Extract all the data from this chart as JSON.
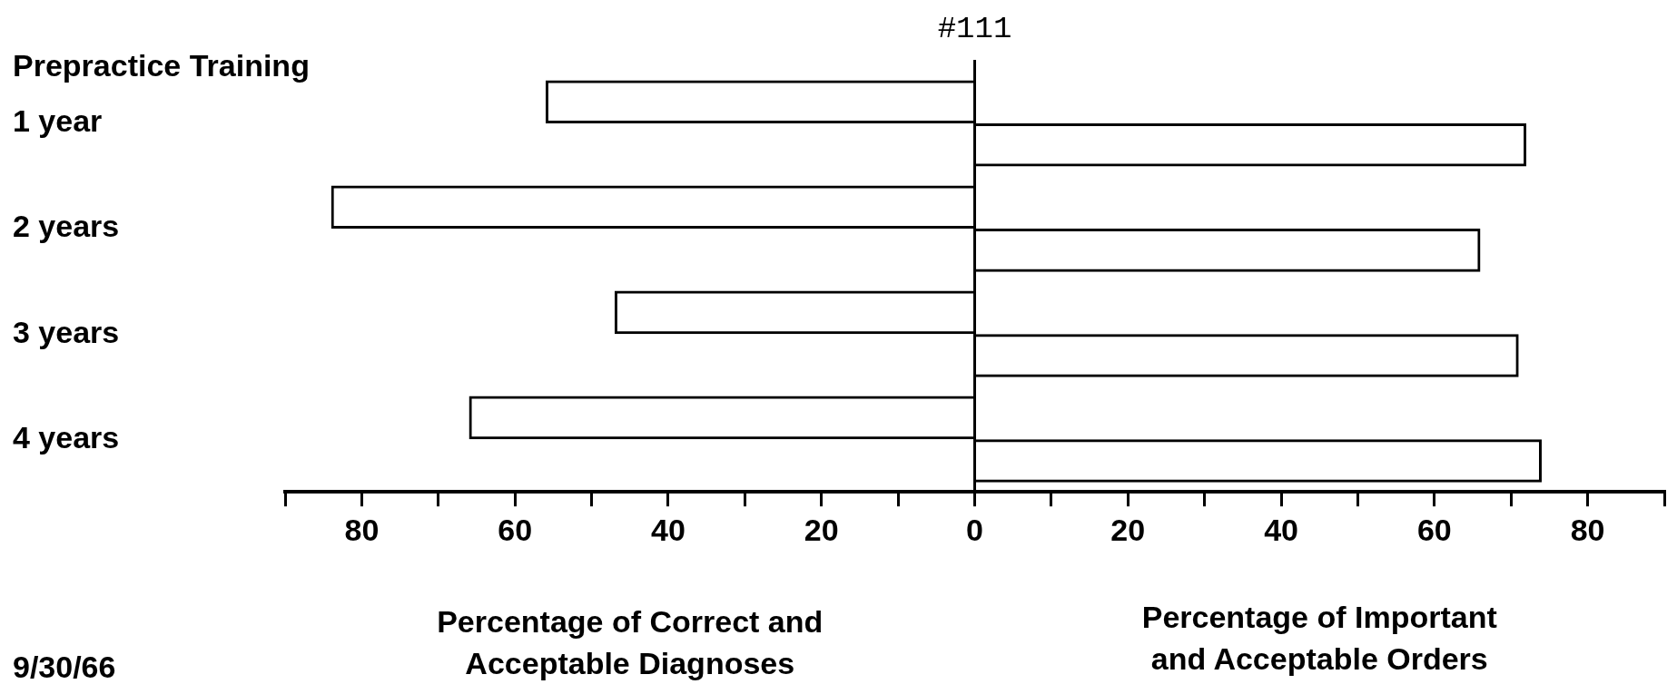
{
  "chart_data": {
    "type": "bar",
    "orientation": "horizontal",
    "title": "#111",
    "ylabel": "Prepractice Training",
    "categories": [
      "1 year",
      "2 years",
      "3 years",
      "4 years"
    ],
    "series": [
      {
        "color": "#000000",
        "values": [
          -56,
          -84,
          -47,
          -66
        ]
      },
      {
        "color": "#000000",
        "values": [
          72,
          66,
          71,
          74
        ]
      }
    ],
    "xlim": [
      -90,
      90
    ],
    "xticks": [
      {
        "value": -90,
        "label": null
      },
      {
        "value": -80,
        "label": "80"
      },
      {
        "value": -70,
        "label": null
      },
      {
        "value": -60,
        "label": "60"
      },
      {
        "value": -50,
        "label": null
      },
      {
        "value": -40,
        "label": "40"
      },
      {
        "value": -30,
        "label": null
      },
      {
        "value": -20,
        "label": "20"
      },
      {
        "value": -10,
        "label": null
      },
      0,
      {
        "value": 10,
        "label": null
      },
      20,
      {
        "value": 30,
        "label": null
      },
      40,
      {
        "value": 50,
        "label": null
      },
      60,
      {
        "value": 70,
        "label": null
      },
      80,
      {
        "value": 90,
        "label": null
      }
    ],
    "grid": false,
    "legend": false,
    "ref_lines": [
      {
        "axis": "x",
        "value": 0,
        "color": "#000000"
      }
    ],
    "annotations": [
      "Percentage of Correct and\nAcceptable Diagnoses",
      "Percentage of Important\nand Acceptable Orders",
      "9/30/66"
    ]
  }
}
